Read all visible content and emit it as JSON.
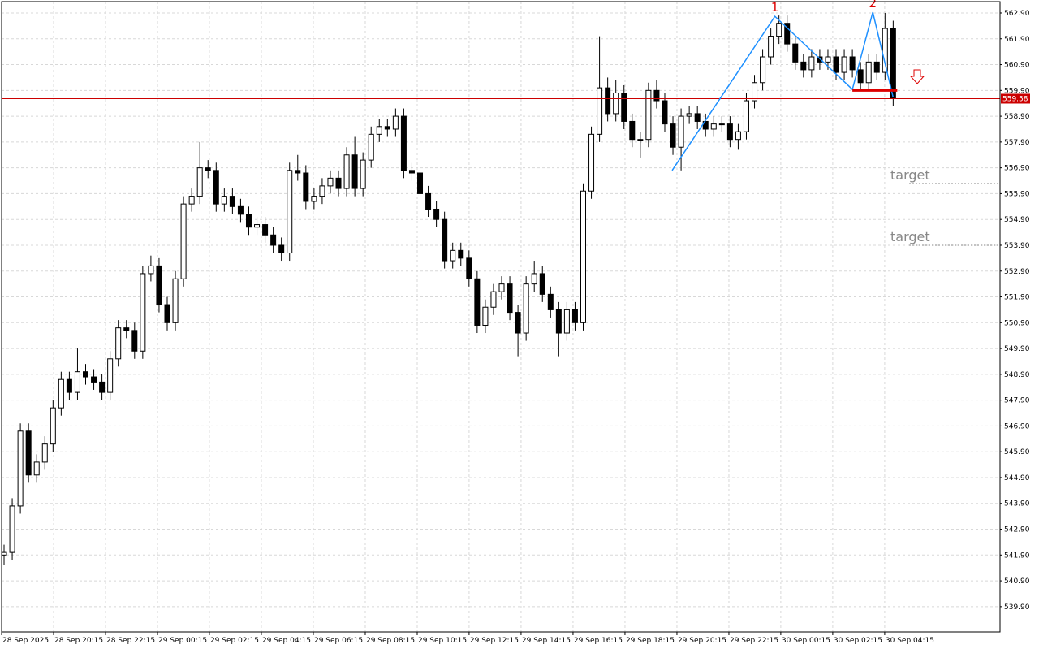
{
  "chart_data": {
    "type": "candlestick",
    "ylim": [
      538.92,
      563.34
    ],
    "xlim": [
      -0.3,
      122.1
    ],
    "yticks": [
      {
        "value": 539.9,
        "label": "539.90"
      },
      {
        "value": 540.9,
        "label": "540.90"
      },
      {
        "value": 541.9,
        "label": "541.90"
      },
      {
        "value": 542.9,
        "label": "542.90"
      },
      {
        "value": 543.9,
        "label": "543.90"
      },
      {
        "value": 544.9,
        "label": "544.90"
      },
      {
        "value": 545.9,
        "label": "545.90"
      },
      {
        "value": 546.9,
        "label": "546.90"
      },
      {
        "value": 547.9,
        "label": "547.90"
      },
      {
        "value": 548.9,
        "label": "548.90"
      },
      {
        "value": 549.9,
        "label": "549.90"
      },
      {
        "value": 550.9,
        "label": "550.90"
      },
      {
        "value": 551.9,
        "label": "551.90"
      },
      {
        "value": 552.9,
        "label": "552.90"
      },
      {
        "value": 553.9,
        "label": "553.90"
      },
      {
        "value": 554.9,
        "label": "554.90"
      },
      {
        "value": 555.9,
        "label": "555.90"
      },
      {
        "value": 556.9,
        "label": "556.90"
      },
      {
        "value": 557.9,
        "label": "557.90"
      },
      {
        "value": 558.9,
        "label": "558.90"
      },
      {
        "value": 559.9,
        "label": "559.90"
      },
      {
        "value": 560.9,
        "label": "560.90"
      },
      {
        "value": 561.9,
        "label": "561.90"
      },
      {
        "value": 562.9,
        "label": "562.90"
      }
    ],
    "xticks": [
      {
        "value": -0.3,
        "label": "28 Sep 2025"
      },
      {
        "value": 6.07,
        "label": "28 Sep 20:15"
      },
      {
        "value": 12.44,
        "label": "28 Sep 22:15"
      },
      {
        "value": 18.81,
        "label": "29 Sep 00:15"
      },
      {
        "value": 25.17,
        "label": "29 Sep 02:15"
      },
      {
        "value": 31.54,
        "label": "29 Sep 04:15"
      },
      {
        "value": 37.91,
        "label": "29 Sep 06:15"
      },
      {
        "value": 44.28,
        "label": "29 Sep 08:15"
      },
      {
        "value": 50.65,
        "label": "29 Sep 10:15"
      },
      {
        "value": 57.01,
        "label": "29 Sep 12:15"
      },
      {
        "value": 63.38,
        "label": "29 Sep 14:15"
      },
      {
        "value": 69.75,
        "label": "29 Sep 16:15"
      },
      {
        "value": 76.12,
        "label": "29 Sep 18:15"
      },
      {
        "value": 82.49,
        "label": "29 Sep 20:15"
      },
      {
        "value": 88.86,
        "label": "29 Sep 22:15"
      },
      {
        "value": 95.22,
        "label": "30 Sep 00:15"
      },
      {
        "value": 101.59,
        "label": "30 Sep 02:15"
      },
      {
        "value": 107.96,
        "label": "30 Sep 04:15"
      }
    ],
    "grid": true,
    "up_color": "#ffffff",
    "down_color": "#000000",
    "open": [
      541.9,
      542.0,
      543.8,
      546.7,
      545.0,
      545.5,
      546.2,
      547.6,
      548.7,
      548.2,
      549.0,
      548.8,
      548.6,
      548.2,
      549.5,
      550.7,
      550.6,
      549.8,
      552.8,
      553.1,
      551.6,
      550.9,
      552.6,
      555.5,
      555.8,
      556.9,
      556.8,
      555.5,
      555.8,
      555.4,
      555.1,
      554.6,
      554.7,
      554.3,
      553.9,
      553.6,
      556.8,
      556.7,
      555.6,
      555.8,
      556.2,
      556.5,
      556.1,
      557.4,
      556.1,
      557.2,
      558.2,
      558.5,
      558.4,
      558.9,
      556.8,
      556.7,
      555.9,
      555.3,
      554.9,
      553.3,
      553.7,
      553.4,
      552.6,
      550.8,
      551.5,
      552.1,
      552.4,
      551.3,
      550.5,
      552.4,
      552.8,
      552.0,
      551.4,
      550.5,
      551.4,
      550.9,
      556.0,
      558.2,
      560.0,
      559.0,
      559.8,
      558.7,
      558.0,
      558.0,
      559.9,
      559.5,
      558.6,
      557.7,
      558.9,
      559.0,
      558.7,
      558.4,
      558.6,
      558.6,
      558.0,
      558.3,
      559.5,
      560.2,
      561.2,
      562.0,
      562.5,
      561.7,
      561.0,
      560.7,
      561.2,
      561.0,
      561.2,
      560.6,
      561.2,
      560.7,
      560.2,
      561.0,
      560.6,
      562.3
    ],
    "high": [
      542.3,
      544.1,
      547.0,
      547.0,
      545.8,
      546.5,
      547.9,
      549.0,
      549.0,
      549.9,
      549.3,
      549.1,
      548.9,
      549.8,
      551.0,
      551.0,
      550.9,
      553.1,
      553.5,
      553.4,
      551.9,
      552.9,
      555.8,
      556.1,
      557.9,
      557.2,
      557.1,
      556.1,
      556.1,
      555.7,
      555.4,
      555.0,
      555.0,
      554.6,
      554.2,
      557.1,
      557.4,
      557.0,
      556.1,
      556.5,
      556.8,
      556.8,
      557.7,
      558.1,
      557.5,
      558.5,
      558.8,
      558.8,
      559.2,
      559.2,
      557.1,
      557.0,
      556.2,
      555.6,
      555.2,
      554.0,
      554.0,
      553.7,
      552.9,
      551.8,
      552.4,
      552.7,
      552.7,
      551.6,
      552.7,
      553.3,
      553.1,
      552.3,
      551.7,
      551.7,
      551.7,
      556.3,
      558.5,
      562.0,
      560.4,
      560.3,
      560.1,
      559.0,
      558.3,
      560.2,
      560.3,
      559.8,
      558.9,
      559.2,
      559.3,
      559.3,
      559.0,
      558.9,
      558.9,
      558.9,
      558.6,
      559.8,
      560.5,
      561.5,
      562.3,
      562.8,
      562.8,
      562.0,
      561.3,
      561.5,
      561.5,
      561.5,
      561.5,
      561.5,
      561.5,
      561.0,
      561.3,
      561.3,
      562.9,
      562.6
    ],
    "low": [
      541.5,
      541.7,
      543.5,
      544.7,
      544.7,
      545.2,
      545.9,
      547.3,
      547.9,
      547.9,
      548.5,
      548.3,
      547.9,
      547.9,
      549.2,
      550.3,
      549.5,
      549.5,
      552.5,
      551.3,
      550.6,
      550.6,
      552.3,
      555.2,
      555.5,
      556.5,
      555.2,
      555.2,
      555.1,
      554.8,
      554.3,
      554.3,
      554.0,
      553.6,
      553.3,
      553.3,
      556.4,
      555.3,
      555.3,
      555.5,
      555.9,
      555.8,
      555.8,
      555.8,
      555.8,
      556.9,
      557.9,
      558.1,
      558.1,
      556.5,
      556.4,
      555.6,
      555.0,
      554.6,
      553.0,
      553.0,
      553.1,
      552.3,
      550.5,
      550.5,
      551.2,
      551.8,
      551.0,
      549.6,
      550.2,
      552.1,
      551.7,
      551.1,
      549.6,
      550.2,
      550.6,
      550.6,
      555.7,
      557.9,
      558.7,
      558.7,
      558.4,
      557.7,
      557.3,
      557.7,
      559.2,
      558.3,
      557.4,
      556.8,
      558.6,
      558.4,
      558.1,
      558.1,
      558.3,
      557.7,
      557.6,
      558.0,
      559.2,
      559.9,
      560.9,
      561.7,
      561.4,
      560.7,
      560.4,
      560.4,
      560.7,
      560.7,
      560.3,
      560.3,
      560.4,
      559.9,
      559.9,
      560.3,
      560.3,
      559.3
    ],
    "close": [
      542.0,
      543.8,
      546.7,
      545.0,
      545.5,
      546.2,
      547.6,
      548.7,
      548.2,
      549.0,
      548.8,
      548.6,
      548.2,
      549.5,
      550.7,
      550.6,
      549.8,
      552.8,
      553.1,
      551.6,
      550.9,
      552.6,
      555.5,
      555.8,
      556.9,
      556.8,
      555.5,
      555.8,
      555.4,
      555.1,
      554.6,
      554.7,
      554.3,
      553.9,
      553.6,
      556.8,
      556.7,
      555.6,
      555.8,
      556.2,
      556.5,
      556.1,
      557.4,
      556.1,
      557.2,
      558.2,
      558.5,
      558.4,
      558.9,
      556.8,
      556.7,
      555.9,
      555.3,
      554.9,
      553.3,
      553.7,
      553.4,
      552.6,
      550.8,
      551.5,
      552.1,
      552.4,
      551.3,
      550.5,
      552.4,
      552.8,
      552.0,
      551.4,
      550.5,
      551.4,
      550.9,
      556.0,
      558.2,
      560.0,
      559.0,
      559.8,
      558.7,
      558.0,
      558.0,
      559.9,
      559.5,
      558.6,
      557.7,
      558.9,
      559.0,
      558.7,
      558.4,
      558.6,
      558.6,
      558.0,
      558.3,
      559.5,
      560.2,
      561.2,
      562.0,
      562.5,
      561.7,
      561.0,
      560.7,
      561.2,
      561.0,
      561.2,
      560.6,
      561.2,
      560.7,
      560.2,
      561.0,
      560.6,
      562.3,
      559.58
    ],
    "current_price": {
      "value": 559.58,
      "label": "559.58",
      "color": "#cc0000"
    },
    "zigzag": {
      "color": "#1e90ff",
      "x": [
        81.9,
        94.5,
        104.0,
        106.5,
        109.0
      ],
      "y": [
        556.8,
        562.77,
        559.94,
        562.93,
        559.63
      ]
    },
    "peaks": [
      {
        "label": "1",
        "x": 94.5,
        "y": 562.77
      },
      {
        "label": "2",
        "x": 106.5,
        "y": 562.93
      }
    ],
    "neckline": {
      "color": "#dd0000",
      "x": [
        104.0,
        109.5
      ],
      "y": 559.9
    },
    "targets": [
      {
        "label": "target",
        "level": 556.29
      },
      {
        "label": "target",
        "level": 553.9
      }
    ]
  }
}
